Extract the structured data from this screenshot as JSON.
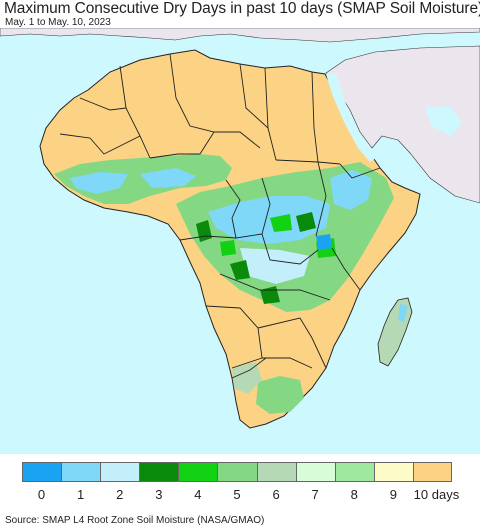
{
  "title": "Maximum Consecutive Dry Days in past 10 days (SMAP Soil Moisture)",
  "subtitle": "May. 1 to May. 10, 2023",
  "source": "Source: SMAP L4 Root Zone Soil Moisture (NASA/GMAO)",
  "colors": {
    "ocean": "#cdf8fd",
    "no_data_land": "#ebe6ee",
    "border": "#222222"
  },
  "legend": {
    "colors": [
      "#1aa3f0",
      "#7fd8f7",
      "#c3effb",
      "#0a8a0a",
      "#12d012",
      "#84d884",
      "#b5d9b5",
      "#d8fbd8",
      "#9fe89f",
      "#fdfcc8",
      "#fcd384"
    ],
    "labels": [
      "0",
      "1",
      "2",
      "3",
      "4",
      "5",
      "6",
      "7",
      "8",
      "9",
      "10 days"
    ]
  }
}
